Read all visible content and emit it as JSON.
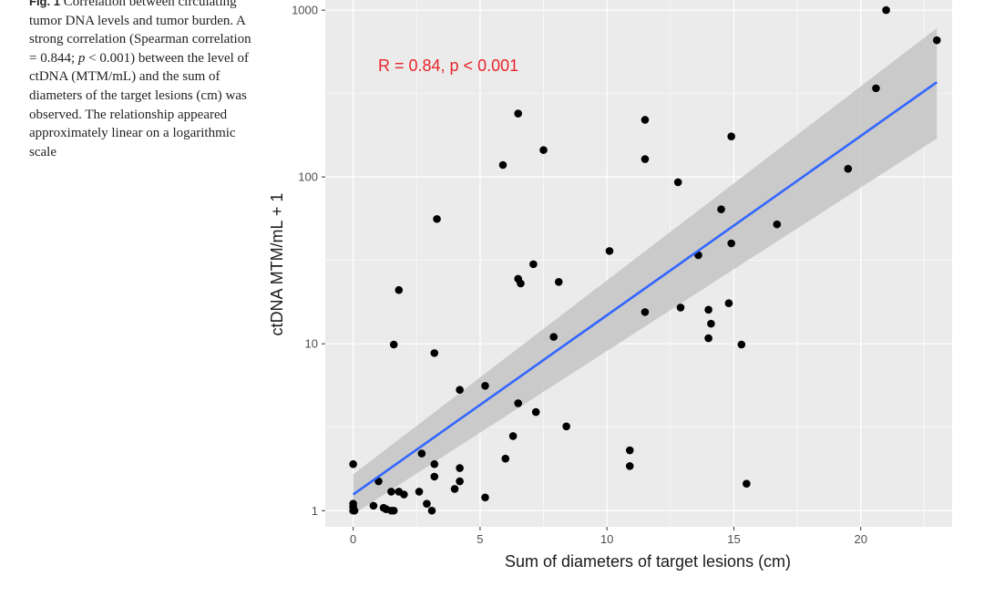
{
  "caption": {
    "fig_label": "Fig. 1",
    "text_1": "Correlation between circulating tumor DNA levels and tumor burden. A strong correlation (Spearman correlation = 0.844; ",
    "p_symbol": "p",
    "text_2": " < 0.001) between the level of ctDNA (MTM/mL) and the sum of diameters of the target lesions (cm) was observed. The relationship appeared approximately linear on a logarithmic scale"
  },
  "chart_data": {
    "type": "scatter",
    "xlabel": "Sum of diameters of target lesions (cm)",
    "ylabel": "ctDNA MTM/mL + 1",
    "xlim": [
      -1.1,
      23.6
    ],
    "ylim": [
      0.8,
      1150
    ],
    "y_scale": "log10",
    "x_ticks": [
      0,
      5,
      10,
      15,
      20
    ],
    "y_ticks": [
      1,
      10,
      100,
      1000
    ],
    "x_tick_labels": [
      "0",
      "5",
      "10",
      "15",
      "20"
    ],
    "y_tick_labels": [
      "1",
      "10",
      "100",
      "1000"
    ],
    "grid": true,
    "annotation": "R = 0.84, p < 0.001",
    "colors": {
      "panel": "#ebebeb",
      "grid": "#ffffff",
      "points": "#000000",
      "fit_line": "#3366ff",
      "ci_band": "#c4c4c4",
      "annotation": "#e8242b"
    },
    "fit": {
      "x": [
        0,
        23
      ],
      "y": [
        1.25,
        370
      ],
      "ci_lower": [
        0.95,
        170
      ],
      "ci_upper": [
        1.65,
        780
      ]
    },
    "points": [
      {
        "x": 0,
        "y": 1.9
      },
      {
        "x": 0,
        "y": 1.0
      },
      {
        "x": 0,
        "y": 1.05
      },
      {
        "x": 0,
        "y": 1.1
      },
      {
        "x": 0.05,
        "y": 1.0
      },
      {
        "x": 0.8,
        "y": 1.07
      },
      {
        "x": 1.0,
        "y": 1.5
      },
      {
        "x": 1.2,
        "y": 1.04
      },
      {
        "x": 1.3,
        "y": 1.02
      },
      {
        "x": 1.5,
        "y": 1.3
      },
      {
        "x": 1.5,
        "y": 1.0
      },
      {
        "x": 1.6,
        "y": 1.0
      },
      {
        "x": 1.6,
        "y": 9.9
      },
      {
        "x": 1.8,
        "y": 21
      },
      {
        "x": 1.8,
        "y": 1.3
      },
      {
        "x": 2.0,
        "y": 1.25
      },
      {
        "x": 2.6,
        "y": 1.3
      },
      {
        "x": 2.7,
        "y": 2.2
      },
      {
        "x": 2.9,
        "y": 1.1
      },
      {
        "x": 3.1,
        "y": 1.0
      },
      {
        "x": 3.2,
        "y": 8.8
      },
      {
        "x": 3.2,
        "y": 1.9
      },
      {
        "x": 3.2,
        "y": 1.6
      },
      {
        "x": 3.3,
        "y": 56
      },
      {
        "x": 4.0,
        "y": 1.35
      },
      {
        "x": 4.2,
        "y": 5.3
      },
      {
        "x": 4.2,
        "y": 1.8
      },
      {
        "x": 4.2,
        "y": 1.5
      },
      {
        "x": 5.2,
        "y": 5.6
      },
      {
        "x": 5.2,
        "y": 1.2
      },
      {
        "x": 5.9,
        "y": 118
      },
      {
        "x": 6.0,
        "y": 2.05
      },
      {
        "x": 6.3,
        "y": 2.8
      },
      {
        "x": 6.5,
        "y": 240
      },
      {
        "x": 6.5,
        "y": 24.5
      },
      {
        "x": 6.5,
        "y": 4.4
      },
      {
        "x": 6.6,
        "y": 23
      },
      {
        "x": 7.1,
        "y": 30
      },
      {
        "x": 7.2,
        "y": 3.9
      },
      {
        "x": 7.5,
        "y": 145
      },
      {
        "x": 7.9,
        "y": 11
      },
      {
        "x": 8.1,
        "y": 23.5
      },
      {
        "x": 8.4,
        "y": 3.2
      },
      {
        "x": 10.1,
        "y": 36
      },
      {
        "x": 10.9,
        "y": 2.3
      },
      {
        "x": 10.9,
        "y": 1.85
      },
      {
        "x": 11.5,
        "y": 220
      },
      {
        "x": 11.5,
        "y": 128
      },
      {
        "x": 11.5,
        "y": 15.5
      },
      {
        "x": 12.8,
        "y": 93
      },
      {
        "x": 12.9,
        "y": 16.5
      },
      {
        "x": 13.6,
        "y": 34
      },
      {
        "x": 14.0,
        "y": 16
      },
      {
        "x": 14.0,
        "y": 10.8
      },
      {
        "x": 14.1,
        "y": 13.2
      },
      {
        "x": 14.5,
        "y": 64
      },
      {
        "x": 14.8,
        "y": 17.5
      },
      {
        "x": 14.9,
        "y": 175
      },
      {
        "x": 14.9,
        "y": 40
      },
      {
        "x": 15.3,
        "y": 9.9
      },
      {
        "x": 15.5,
        "y": 1.45
      },
      {
        "x": 16.7,
        "y": 52
      },
      {
        "x": 19.5,
        "y": 112
      },
      {
        "x": 20.6,
        "y": 340
      },
      {
        "x": 21.0,
        "y": 1000
      },
      {
        "x": 23.0,
        "y": 660
      }
    ]
  }
}
